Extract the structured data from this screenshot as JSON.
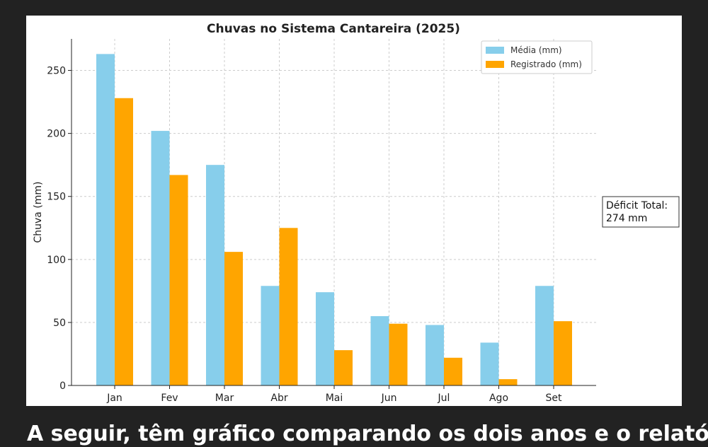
{
  "chart_data": {
    "type": "bar",
    "title": "Chuvas no Sistema Cantareira (2025)",
    "xlabel": "",
    "ylabel": "Chuva (mm)",
    "categories": [
      "Jan",
      "Fev",
      "Mar",
      "Abr",
      "Mai",
      "Jun",
      "Jul",
      "Ago",
      "Set"
    ],
    "series": [
      {
        "name": "Média (mm)",
        "color": "#87CEEB",
        "values": [
          263,
          202,
          175,
          79,
          74,
          55,
          48,
          34,
          79
        ]
      },
      {
        "name": "Registrado (mm)",
        "color": "#FFA500",
        "values": [
          228,
          167,
          106,
          125,
          28,
          49,
          22,
          5,
          51
        ]
      }
    ],
    "ylim": [
      0,
      275
    ],
    "yticks": [
      0,
      50,
      100,
      150,
      200,
      250
    ],
    "grid": true,
    "legend_position": "top-right",
    "annotation": {
      "line1": "Déficit Total:",
      "line2": "274 mm"
    }
  },
  "caption": "A seguir, têm gráfico comparando os dois anos e o relatório"
}
